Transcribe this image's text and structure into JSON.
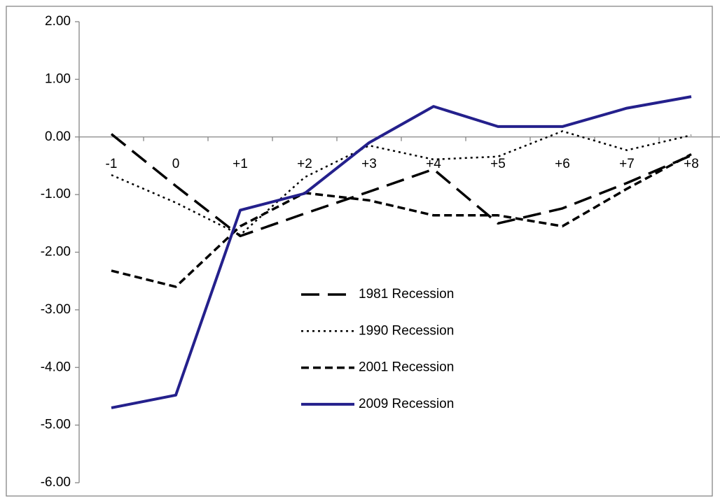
{
  "chart_data": {
    "type": "line",
    "categories": [
      "-1",
      "0",
      "+1",
      "+2",
      "+3",
      "+4",
      "+5",
      "+6",
      "+7",
      "+8"
    ],
    "series": [
      {
        "name": "1981 Recession",
        "color": "#000000",
        "dash": "long-dash",
        "values": [
          0.05,
          -0.85,
          -1.72,
          -1.33,
          -0.95,
          -0.56,
          -1.5,
          -1.24,
          -0.8,
          -0.32
        ]
      },
      {
        "name": "1990 Recession",
        "color": "#000000",
        "dash": "dotted",
        "values": [
          -0.66,
          -1.14,
          -1.7,
          -0.7,
          -0.15,
          -0.39,
          -0.34,
          0.1,
          -0.23,
          0.03
        ]
      },
      {
        "name": "2001 Recession",
        "color": "#000000",
        "dash": "short-dash",
        "values": [
          -2.32,
          -2.6,
          -1.55,
          -0.97,
          -1.1,
          -1.36,
          -1.36,
          -1.55,
          -0.9,
          -0.3
        ]
      },
      {
        "name": "2009 Recession",
        "color": "#24208c",
        "dash": "solid",
        "values": [
          -4.7,
          -4.48,
          -1.27,
          -0.98,
          -0.1,
          0.53,
          0.18,
          0.18,
          0.5,
          0.7
        ]
      }
    ],
    "ylim": [
      -6,
      2
    ],
    "yticks": [
      {
        "value": -6,
        "label": "-6.00"
      },
      {
        "value": -5,
        "label": "-5.00"
      },
      {
        "value": -4,
        "label": "-4.00"
      },
      {
        "value": -3,
        "label": "-3.00"
      },
      {
        "value": -2,
        "label": "-2.00"
      },
      {
        "value": -1,
        "label": "-1.00"
      },
      {
        "value": 0,
        "label": "0.00"
      },
      {
        "value": 1,
        "label": "1.00"
      },
      {
        "value": 2,
        "label": "2.00"
      }
    ],
    "grid": false,
    "legend": "center"
  }
}
